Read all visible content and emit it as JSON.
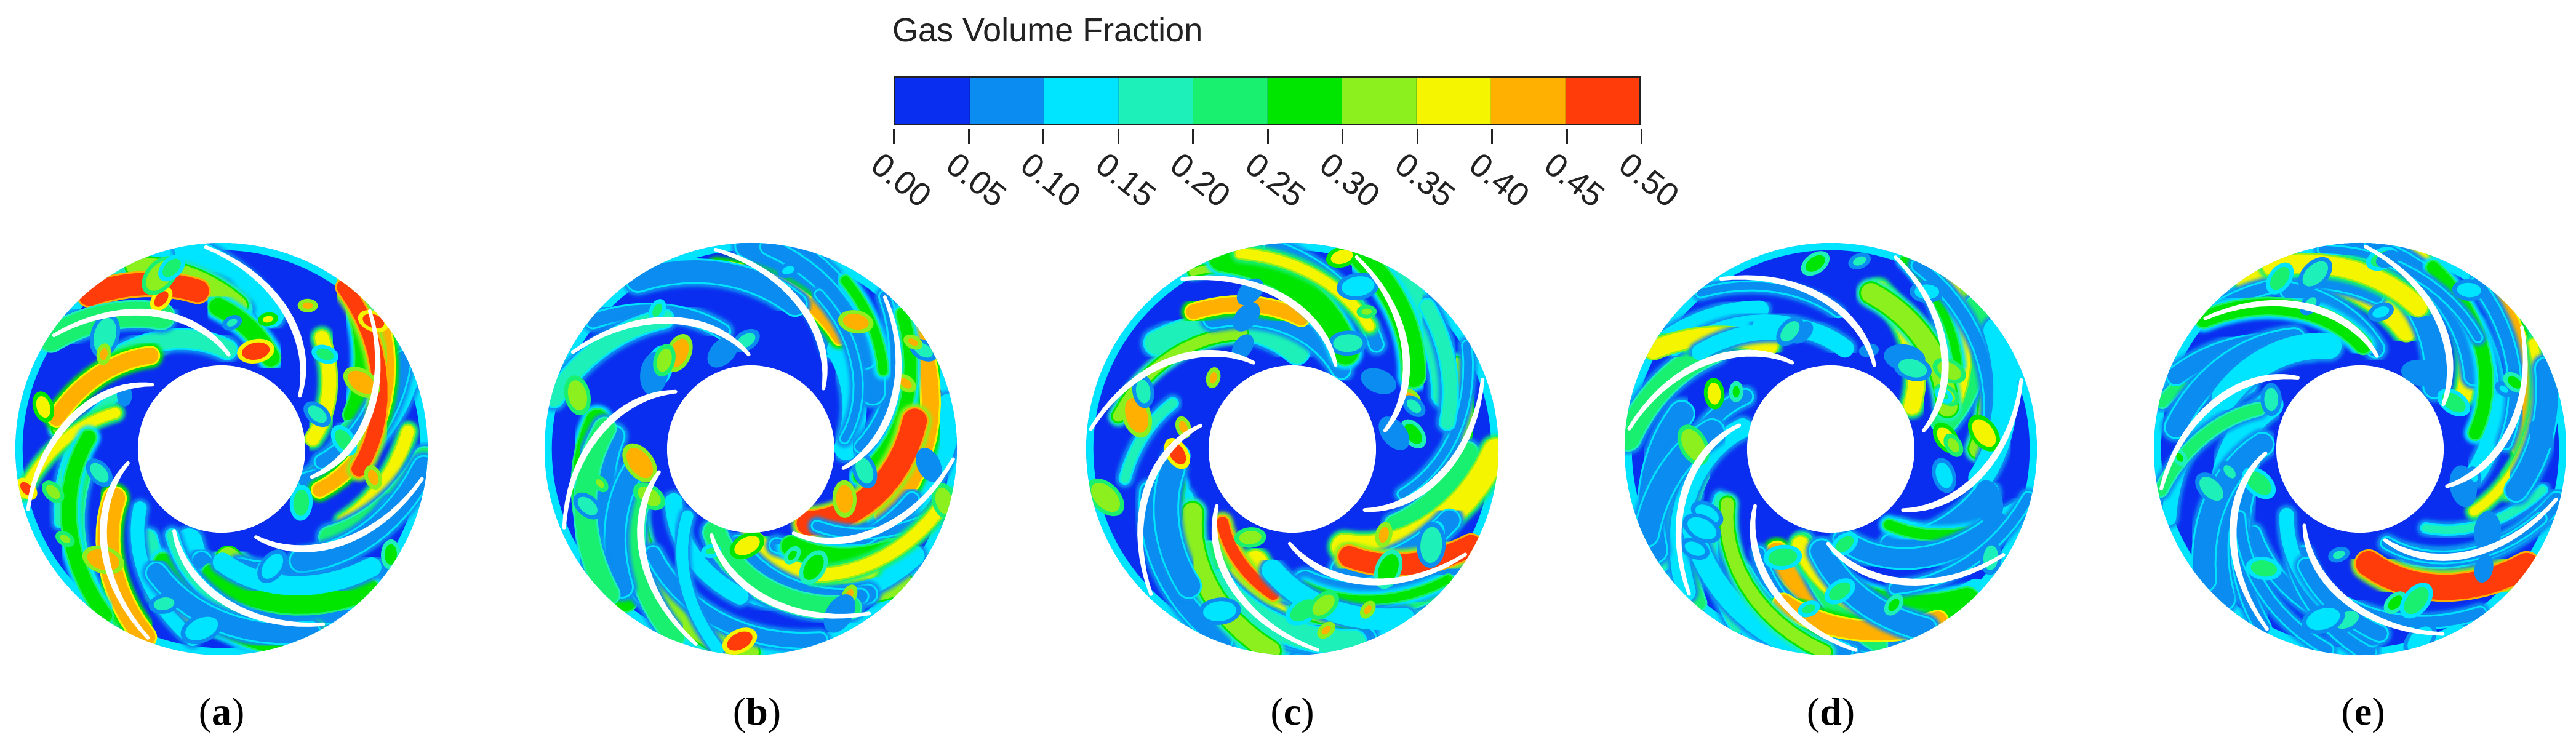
{
  "legend": {
    "title": "Gas Volume Fraction",
    "ticks": [
      "0.00",
      "0.05",
      "0.10",
      "0.15",
      "0.20",
      "0.25",
      "0.30",
      "0.35",
      "0.40",
      "0.45",
      "0.50"
    ],
    "colors": [
      "#0a2ef0",
      "#0a8cf0",
      "#00e5ff",
      "#1df0b8",
      "#19f070",
      "#00e600",
      "#8cf01e",
      "#f5f500",
      "#ffb000",
      "#ff3c0a"
    ]
  },
  "panels": [
    {
      "letter": "a"
    },
    {
      "letter": "b"
    },
    {
      "letter": "c"
    },
    {
      "letter": "d"
    },
    {
      "letter": "e"
    }
  ]
}
